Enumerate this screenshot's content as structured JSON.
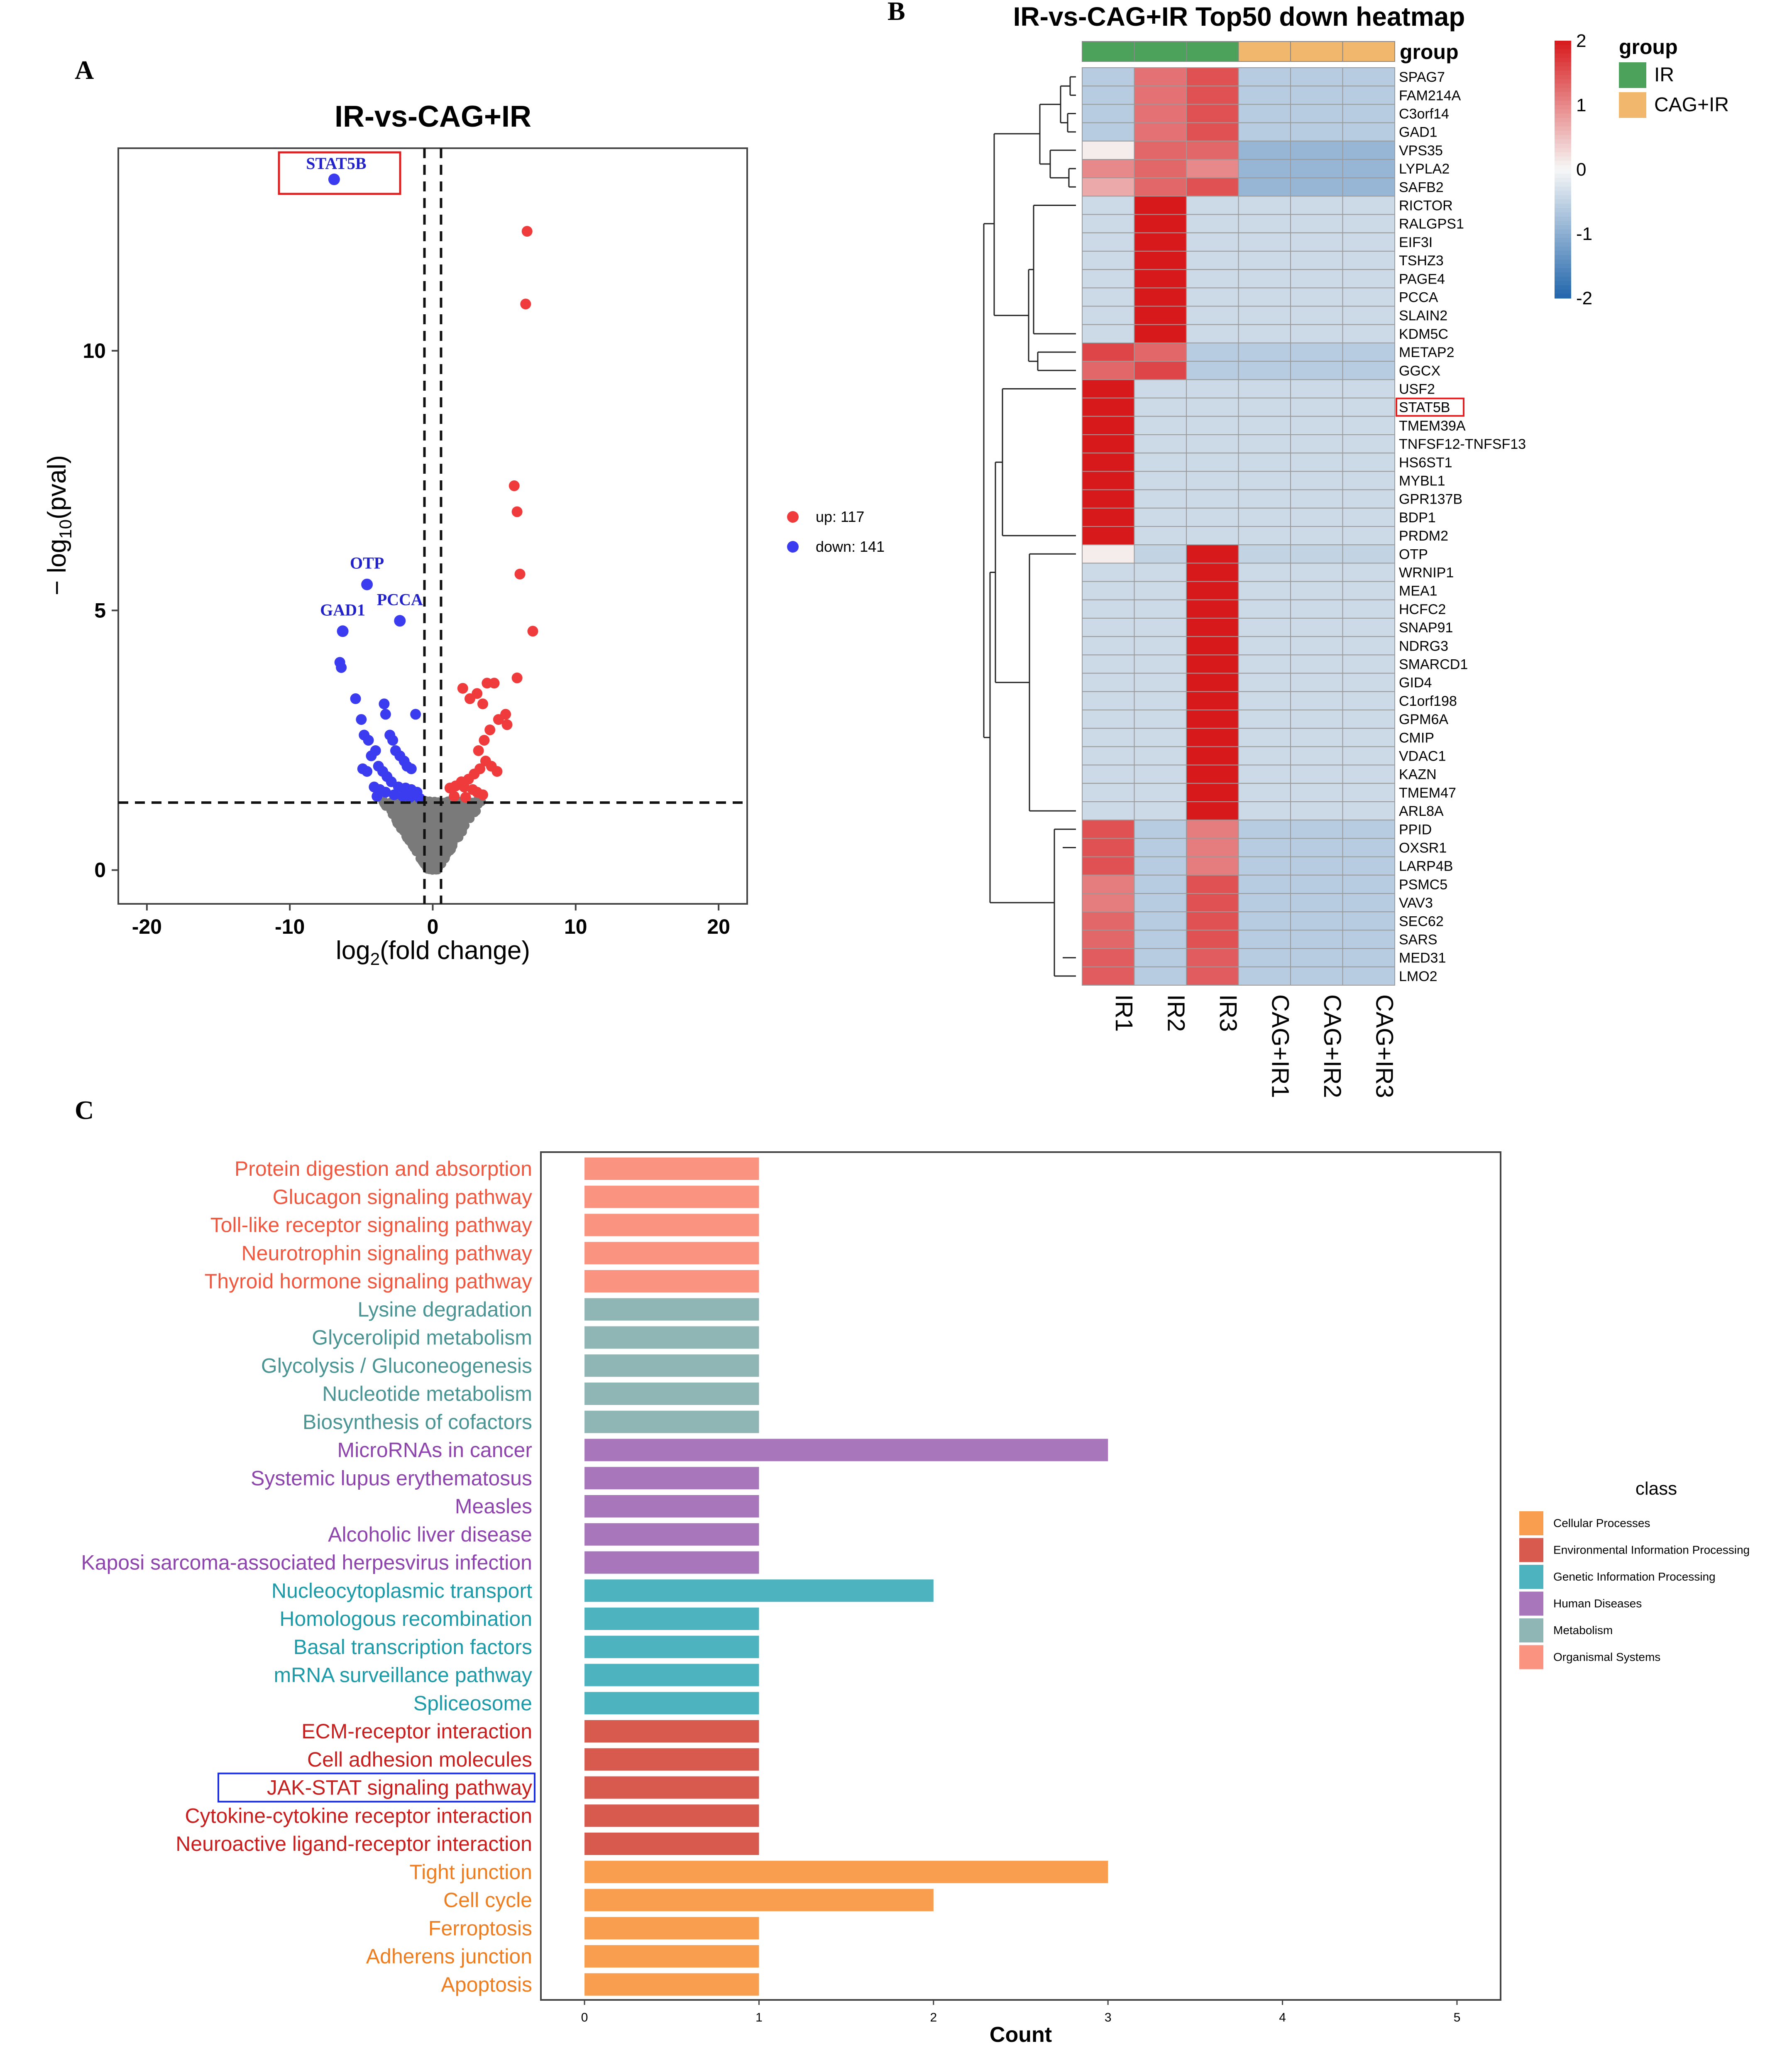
{
  "panels": {
    "a": "A",
    "b": "B",
    "c": "C"
  },
  "chart_data": [
    {
      "type": "scatter",
      "id": "volcano",
      "title": "IR-vs-CAG+IR",
      "xlabel": "log2(fold change)",
      "ylabel": "-log10(pval)",
      "xlabel_main": "log",
      "xlabel_sub": "2",
      "xlabel_rest": "(fold change)",
      "ylabel_main": "− log",
      "ylabel_sub": "10",
      "ylabel_rest": "(pval)",
      "xlim": [
        -22,
        22
      ],
      "ylim": [
        -0.65,
        13.9
      ],
      "xticks": [
        -20,
        -10,
        0,
        10,
        20
      ],
      "yticks": [
        0,
        5,
        10
      ],
      "x_thresholds": [
        -0.58,
        0.58
      ],
      "y_threshold": 1.3,
      "legend": [
        {
          "label": "up: 117",
          "color": "#ef3b3b"
        },
        {
          "label": "down: 141",
          "color": "#3b3bef"
        }
      ],
      "highlight_box_label": "STAT5B",
      "labeled_points": [
        {
          "label": "STAT5B",
          "x": -6.9,
          "y": 13.3,
          "color": "#2222cc"
        },
        {
          "label": "OTP",
          "x": -4.6,
          "y": 5.5,
          "color": "#2222cc"
        },
        {
          "label": "PCCA",
          "x": -2.3,
          "y": 4.8,
          "color": "#2222cc"
        },
        {
          "label": "GAD1",
          "x": -6.3,
          "y": 4.6,
          "color": "#2222cc"
        }
      ],
      "up_points": [
        [
          6.6,
          12.3
        ],
        [
          6.5,
          10.9
        ],
        [
          5.7,
          7.4
        ],
        [
          5.9,
          6.9
        ],
        [
          6.1,
          5.7
        ],
        [
          7.0,
          4.6
        ],
        [
          3.8,
          3.6
        ],
        [
          4.3,
          3.6
        ],
        [
          5.9,
          3.7
        ],
        [
          2.1,
          3.5
        ],
        [
          3.1,
          3.4
        ],
        [
          3.5,
          3.2
        ],
        [
          2.6,
          3.3
        ],
        [
          5.1,
          3.0
        ],
        [
          4.6,
          2.9
        ],
        [
          4.0,
          2.7
        ],
        [
          3.6,
          2.5
        ],
        [
          3.2,
          2.3
        ],
        [
          3.7,
          2.1
        ],
        [
          4.1,
          2.0
        ],
        [
          3.3,
          1.95
        ],
        [
          2.9,
          1.85
        ],
        [
          2.5,
          1.75
        ],
        [
          2.0,
          1.7
        ],
        [
          1.6,
          1.62
        ],
        [
          1.2,
          1.58
        ],
        [
          2.2,
          1.6
        ],
        [
          2.8,
          1.55
        ],
        [
          3.1,
          1.5
        ],
        [
          3.5,
          1.45
        ],
        [
          1.5,
          1.42
        ],
        [
          2.3,
          1.4
        ],
        [
          4.5,
          1.9
        ],
        [
          5.2,
          2.8
        ]
      ],
      "down_points": [
        [
          -6.4,
          3.9
        ],
        [
          -6.5,
          4.0
        ],
        [
          -5.4,
          3.3
        ],
        [
          -3.4,
          3.2
        ],
        [
          -3.3,
          3.0
        ],
        [
          -5.0,
          2.9
        ],
        [
          -4.8,
          2.6
        ],
        [
          -4.5,
          2.5
        ],
        [
          -1.2,
          3.0
        ],
        [
          -3.0,
          2.6
        ],
        [
          -2.8,
          2.5
        ],
        [
          -2.6,
          2.3
        ],
        [
          -2.3,
          2.2
        ],
        [
          -2.0,
          2.1
        ],
        [
          -1.8,
          2.0
        ],
        [
          -1.5,
          1.95
        ],
        [
          -4.0,
          2.3
        ],
        [
          -4.3,
          2.2
        ],
        [
          -3.8,
          2.0
        ],
        [
          -3.5,
          1.9
        ],
        [
          -3.2,
          1.8
        ],
        [
          -2.9,
          1.7
        ],
        [
          -2.4,
          1.6
        ],
        [
          -1.9,
          1.58
        ],
        [
          -1.5,
          1.55
        ],
        [
          -1.1,
          1.5
        ],
        [
          -4.6,
          1.9
        ],
        [
          -4.9,
          1.95
        ],
        [
          -4.1,
          1.6
        ],
        [
          -3.7,
          1.55
        ],
        [
          -3.3,
          1.5
        ],
        [
          -2.7,
          1.45
        ],
        [
          -2.1,
          1.42
        ],
        [
          -1.6,
          1.4
        ],
        [
          -0.9,
          1.38
        ],
        [
          -3.9,
          1.42
        ]
      ]
    },
    {
      "type": "heatmap",
      "id": "heatmap",
      "title": "IR-vs-CAG+IR Top50 down heatmap",
      "group_track_label": "group",
      "columns": [
        "IR1",
        "IR2",
        "IR3",
        "CAG+IR1",
        "CAG+IR2",
        "CAG+IR3"
      ],
      "column_groups": [
        "IR",
        "IR",
        "IR",
        "CAG+IR",
        "CAG+IR",
        "CAG+IR"
      ],
      "genes": [
        "SPAG7",
        "FAM214A",
        "C3orf14",
        "GAD1",
        "VPS35",
        "LYPLA2",
        "SAFB2",
        "RICTOR",
        "RALGPS1",
        "EIF3I",
        "TSHZ3",
        "PAGE4",
        "PCCA",
        "SLAIN2",
        "KDM5C",
        "METAP2",
        "GGCX",
        "USF2",
        "STAT5B",
        "TMEM39A",
        "TNFSF12-TNFSF13",
        "HS6ST1",
        "MYBL1",
        "GPR137B",
        "BDP1",
        "PRDM2",
        "OTP",
        "WRNIP1",
        "MEA1",
        "HCFC2",
        "SNAP91",
        "NDRG3",
        "SMARCD1",
        "GID4",
        "C1orf198",
        "GPM6A",
        "CMIP",
        "VDAC1",
        "KAZN",
        "TMEM47",
        "ARL8A",
        "PPID",
        "OXSR1",
        "LARP4B",
        "PSMC5",
        "VAV3",
        "SEC62",
        "SARS",
        "MED31",
        "LMO2"
      ],
      "highlight_gene": "STAT5B",
      "values": [
        [
          -0.6,
          1.2,
          1.5,
          -0.6,
          -0.6,
          -0.6
        ],
        [
          -0.6,
          1.2,
          1.5,
          -0.6,
          -0.6,
          -0.6
        ],
        [
          -0.6,
          1.2,
          1.5,
          -0.6,
          -0.6,
          -0.6
        ],
        [
          -0.6,
          1.2,
          1.5,
          -0.6,
          -0.6,
          -0.6
        ],
        [
          0.1,
          1.3,
          1.3,
          -0.9,
          -0.9,
          -0.9
        ],
        [
          1.0,
          1.3,
          1.0,
          -0.9,
          -0.9,
          -0.9
        ],
        [
          0.7,
          1.3,
          1.5,
          -0.9,
          -0.9,
          -0.9
        ],
        [
          -0.4,
          2.0,
          -0.4,
          -0.4,
          -0.4,
          -0.4
        ],
        [
          -0.4,
          2.0,
          -0.4,
          -0.4,
          -0.4,
          -0.4
        ],
        [
          -0.4,
          2.0,
          -0.4,
          -0.4,
          -0.4,
          -0.4
        ],
        [
          -0.4,
          2.0,
          -0.4,
          -0.4,
          -0.4,
          -0.4
        ],
        [
          -0.4,
          2.0,
          -0.4,
          -0.4,
          -0.4,
          -0.4
        ],
        [
          -0.4,
          2.0,
          -0.4,
          -0.4,
          -0.4,
          -0.4
        ],
        [
          -0.4,
          2.0,
          -0.4,
          -0.4,
          -0.4,
          -0.4
        ],
        [
          -0.4,
          2.0,
          -0.4,
          -0.4,
          -0.4,
          -0.4
        ],
        [
          1.6,
          1.3,
          -0.6,
          -0.6,
          -0.6,
          -0.6
        ],
        [
          1.3,
          1.6,
          -0.6,
          -0.6,
          -0.6,
          -0.6
        ],
        [
          2.0,
          -0.4,
          -0.4,
          -0.4,
          -0.4,
          -0.4
        ],
        [
          2.0,
          -0.4,
          -0.4,
          -0.4,
          -0.4,
          -0.4
        ],
        [
          2.0,
          -0.4,
          -0.4,
          -0.4,
          -0.4,
          -0.4
        ],
        [
          2.0,
          -0.4,
          -0.4,
          -0.4,
          -0.4,
          -0.4
        ],
        [
          2.0,
          -0.4,
          -0.4,
          -0.4,
          -0.4,
          -0.4
        ],
        [
          2.0,
          -0.4,
          -0.4,
          -0.4,
          -0.4,
          -0.4
        ],
        [
          2.0,
          -0.4,
          -0.4,
          -0.4,
          -0.4,
          -0.4
        ],
        [
          2.0,
          -0.4,
          -0.4,
          -0.4,
          -0.4,
          -0.4
        ],
        [
          2.0,
          -0.4,
          -0.4,
          -0.4,
          -0.4,
          -0.4
        ],
        [
          0.1,
          -0.5,
          2.0,
          -0.5,
          -0.5,
          -0.5
        ],
        [
          -0.4,
          -0.4,
          2.0,
          -0.4,
          -0.4,
          -0.4
        ],
        [
          -0.4,
          -0.4,
          2.0,
          -0.4,
          -0.4,
          -0.4
        ],
        [
          -0.4,
          -0.4,
          2.0,
          -0.4,
          -0.4,
          -0.4
        ],
        [
          -0.4,
          -0.4,
          2.0,
          -0.4,
          -0.4,
          -0.4
        ],
        [
          -0.4,
          -0.4,
          2.0,
          -0.4,
          -0.4,
          -0.4
        ],
        [
          -0.4,
          -0.4,
          2.0,
          -0.4,
          -0.4,
          -0.4
        ],
        [
          -0.4,
          -0.4,
          2.0,
          -0.4,
          -0.4,
          -0.4
        ],
        [
          -0.4,
          -0.4,
          2.0,
          -0.4,
          -0.4,
          -0.4
        ],
        [
          -0.4,
          -0.4,
          2.0,
          -0.4,
          -0.4,
          -0.4
        ],
        [
          -0.4,
          -0.4,
          2.0,
          -0.4,
          -0.4,
          -0.4
        ],
        [
          -0.4,
          -0.4,
          2.0,
          -0.4,
          -0.4,
          -0.4
        ],
        [
          -0.4,
          -0.4,
          2.0,
          -0.4,
          -0.4,
          -0.4
        ],
        [
          -0.4,
          -0.4,
          2.0,
          -0.4,
          -0.4,
          -0.4
        ],
        [
          -0.4,
          -0.4,
          2.0,
          -0.4,
          -0.4,
          -0.4
        ],
        [
          1.5,
          -0.6,
          1.1,
          -0.6,
          -0.6,
          -0.6
        ],
        [
          1.5,
          -0.6,
          1.1,
          -0.6,
          -0.6,
          -0.6
        ],
        [
          1.5,
          -0.6,
          1.1,
          -0.6,
          -0.6,
          -0.6
        ],
        [
          1.1,
          -0.6,
          1.5,
          -0.6,
          -0.6,
          -0.6
        ],
        [
          1.1,
          -0.6,
          1.5,
          -0.6,
          -0.6,
          -0.6
        ],
        [
          1.3,
          -0.6,
          1.5,
          -0.6,
          -0.6,
          -0.6
        ],
        [
          1.3,
          -0.6,
          1.5,
          -0.6,
          -0.6,
          -0.6
        ],
        [
          1.4,
          -0.6,
          1.4,
          -0.6,
          -0.6,
          -0.6
        ],
        [
          1.4,
          -0.6,
          1.4,
          -0.6,
          -0.6,
          -0.6
        ]
      ],
      "color_scale": {
        "min": -2,
        "max": 2,
        "low": "#2166ac",
        "mid": "#f7f7f7",
        "high": "#d7191c",
        "ticks": [
          2,
          1,
          0,
          -1,
          -2
        ]
      },
      "group_legend": {
        "title": "group",
        "items": [
          {
            "label": "IR",
            "color": "#4ca25a"
          },
          {
            "label": "CAG+IR",
            "color": "#f1b86d"
          }
        ]
      }
    },
    {
      "type": "bar",
      "id": "kegg",
      "orientation": "horizontal",
      "xlabel": "Count",
      "xlim": [
        -0.25,
        5.25
      ],
      "xticks": [
        0,
        1,
        2,
        3,
        4,
        5
      ],
      "categories": [
        "Protein digestion and absorption",
        "Glucagon signaling pathway",
        "Toll-like receptor signaling pathway",
        "Neurotrophin signaling pathway",
        "Thyroid hormone signaling pathway",
        "Lysine degradation",
        "Glycerolipid metabolism",
        "Glycolysis / Gluconeogenesis",
        "Nucleotide metabolism",
        "Biosynthesis of cofactors",
        "MicroRNAs in cancer",
        "Systemic lupus erythematosus",
        "Measles",
        "Alcoholic liver disease",
        "Kaposi sarcoma-associated herpesvirus infection",
        "Nucleocytoplasmic transport",
        "Homologous recombination",
        "Basal transcription factors",
        "mRNA surveillance pathway",
        "Spliceosome",
        "ECM-receptor interaction",
        "Cell adhesion molecules",
        "JAK-STAT signaling pathway",
        "Cytokine-cytokine receptor interaction",
        "Neuroactive ligand-receptor interaction",
        "Tight junction",
        "Cell cycle",
        "Ferroptosis",
        "Adherens junction",
        "Apoptosis"
      ],
      "values": [
        1,
        1,
        1,
        1,
        1,
        1,
        1,
        1,
        1,
        1,
        3,
        1,
        1,
        1,
        1,
        2,
        1,
        1,
        1,
        1,
        1,
        1,
        1,
        1,
        1,
        3,
        2,
        1,
        1,
        1
      ],
      "bar_class": [
        5,
        5,
        5,
        5,
        5,
        4,
        4,
        4,
        4,
        4,
        3,
        3,
        3,
        3,
        3,
        2,
        2,
        2,
        2,
        2,
        1,
        1,
        1,
        1,
        1,
        0,
        0,
        0,
        0,
        0
      ],
      "highlight_category": "JAK-STAT signaling pathway",
      "legend_title": "class",
      "classes": [
        {
          "name": "Cellular Processes",
          "bar": "#f99d4f",
          "label": "#ee7d1f"
        },
        {
          "name": "Environmental Information Processing",
          "bar": "#d85a4e",
          "label": "#c81e1e"
        },
        {
          "name": "Genetic Information Processing",
          "bar": "#4db3bf",
          "label": "#1d9aa8"
        },
        {
          "name": "Human Diseases",
          "bar": "#a877bb",
          "label": "#8e44ad"
        },
        {
          "name": "Metabolism",
          "bar": "#8fb6b4",
          "label": "#4a9494"
        },
        {
          "name": "Organismal Systems",
          "bar": "#fb9381",
          "label": "#f0573f"
        }
      ]
    }
  ]
}
